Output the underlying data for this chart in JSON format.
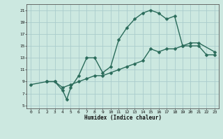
{
  "xlabel": "Humidex (Indice chaleur)",
  "xlim": [
    -0.5,
    23.5
  ],
  "ylim": [
    4.5,
    22
  ],
  "xticks": [
    0,
    1,
    2,
    3,
    4,
    5,
    6,
    7,
    8,
    9,
    10,
    11,
    12,
    13,
    14,
    15,
    16,
    17,
    18,
    19,
    20,
    21,
    22,
    23
  ],
  "yticks": [
    5,
    7,
    9,
    11,
    13,
    15,
    17,
    19,
    21
  ],
  "bg_color": "#cce8e0",
  "grid_color": "#aacccc",
  "line_color": "#2a6b5a",
  "curve1_x": [
    2,
    3,
    4,
    4.5,
    5,
    6,
    7,
    8,
    9,
    10,
    11,
    12,
    13,
    14,
    15,
    16,
    17,
    18,
    19,
    20,
    21,
    23
  ],
  "curve1_y": [
    9,
    9,
    7.5,
    6,
    8,
    10,
    13,
    13,
    10.5,
    11.5,
    16,
    18,
    19.5,
    20.5,
    21,
    20.5,
    19.5,
    20,
    15,
    15.5,
    15.5,
    14
  ],
  "curve2_x": [
    0,
    2,
    3,
    4,
    5,
    6,
    7,
    8,
    9,
    10,
    11,
    12,
    13,
    14,
    15,
    16,
    17,
    18,
    19,
    20,
    21,
    22,
    23
  ],
  "curve2_y": [
    8.5,
    9,
    9,
    8,
    8.5,
    9,
    9.5,
    10,
    10,
    10.5,
    11,
    11.5,
    12,
    12.5,
    14.5,
    14,
    14.5,
    14.5,
    15,
    15,
    15,
    13.5,
    13.5
  ],
  "marker": "D",
  "markersize": 2.5,
  "linewidth": 1.0
}
